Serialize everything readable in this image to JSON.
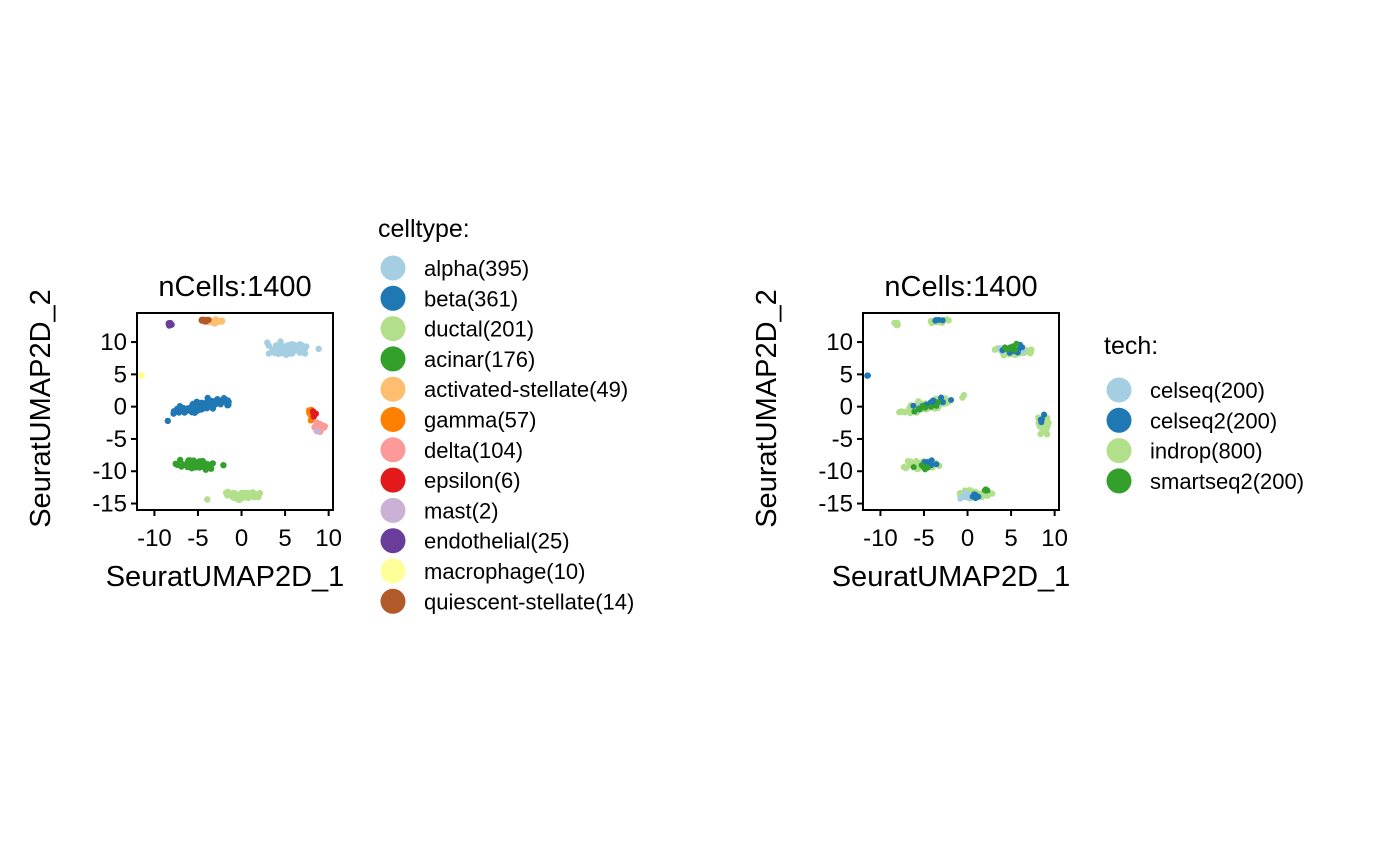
{
  "chart_data": [
    {
      "type": "scatter",
      "title": "nCells:1400",
      "xlabel": "SeuratUMAP2D_1",
      "ylabel": "SeuratUMAP2D_2",
      "xlim": [
        -12,
        10.5
      ],
      "ylim": [
        -16,
        14.5
      ],
      "xticks": [
        -10,
        -5,
        0,
        5,
        10
      ],
      "yticks": [
        -15,
        -10,
        -5,
        0,
        5,
        10
      ],
      "xtick_labels": [
        "-10",
        "-5",
        "0",
        "5",
        "10"
      ],
      "ytick_labels": [
        "-15",
        "-10",
        "-5",
        "0",
        "5",
        "10"
      ],
      "grid": false,
      "legend_position": "right",
      "legend_title": "celltype:",
      "series": [
        {
          "name": "alpha(395)",
          "color": "#A6CEE3",
          "clusters": [
            {
              "x": 5,
              "y": 8.8,
              "sx": 1.8,
              "sy": 0.7,
              "n": 120,
              "r": 3.2
            }
          ]
        },
        {
          "name": "beta(361)",
          "color": "#1F78B4",
          "clusters": [
            {
              "x": -4.3,
              "y": 0.2,
              "sx": 2.8,
              "sy": 0.6,
              "n": 110,
              "r": 3.2,
              "slope": 0.3
            }
          ]
        },
        {
          "name": "ductal(201)",
          "color": "#B2DF8A",
          "clusters": [
            {
              "x": 0.3,
              "y": -13.7,
              "sx": 1.8,
              "sy": 0.5,
              "n": 70,
              "r": 3.2
            }
          ]
        },
        {
          "name": "acinar(176)",
          "color": "#33A02C",
          "clusters": [
            {
              "x": -5.2,
              "y": -9,
              "sx": 1.8,
              "sy": 0.6,
              "n": 60,
              "r": 3.2
            }
          ]
        },
        {
          "name": "activated-stellate(49)",
          "color": "#FDBF6F",
          "clusters": [
            {
              "x": -3,
              "y": 13.2,
              "sx": 1.0,
              "sy": 0.3,
              "n": 22,
              "r": 3.2
            }
          ]
        },
        {
          "name": "gamma(57)",
          "color": "#FF7F00",
          "clusters": [
            {
              "x": 8,
              "y": -1,
              "sx": 0.4,
              "sy": 0.5,
              "n": 20,
              "r": 3.2
            }
          ]
        },
        {
          "name": "delta(104)",
          "color": "#FB9A99",
          "clusters": [
            {
              "x": 9,
              "y": -3.2,
              "sx": 0.5,
              "sy": 0.6,
              "n": 40,
              "r": 3.2
            }
          ]
        },
        {
          "name": "epsilon(6)",
          "color": "#E31A1C",
          "clusters": [
            {
              "x": 8.3,
              "y": -1,
              "sx": 0.2,
              "sy": 0.3,
              "n": 6,
              "r": 3.2
            }
          ]
        },
        {
          "name": "mast(2)",
          "color": "#CAB2D6",
          "clusters": [
            {
              "x": 8.7,
              "y": -3.8,
              "sx": 0.1,
              "sy": 0.1,
              "n": 2,
              "r": 3.2
            }
          ]
        },
        {
          "name": "endothelial(25)",
          "color": "#6A3D9A",
          "clusters": [
            {
              "x": -8.2,
              "y": 12.8,
              "sx": 0.2,
              "sy": 0.2,
              "n": 15,
              "r": 3.2
            }
          ]
        },
        {
          "name": "macrophage(10)",
          "color": "#FFFF99",
          "clusters": [
            {
              "x": -11.5,
              "y": 4.8,
              "sx": 0.1,
              "sy": 0.1,
              "n": 6,
              "r": 3.2
            }
          ]
        },
        {
          "name": "quiescent-stellate(14)",
          "color": "#B15928",
          "clusters": [
            {
              "x": -4.2,
              "y": 13.3,
              "sx": 0.4,
              "sy": 0.2,
              "n": 10,
              "r": 3.2
            }
          ]
        }
      ]
    },
    {
      "type": "scatter",
      "title": "nCells:1400",
      "xlabel": "SeuratUMAP2D_1",
      "ylabel": "SeuratUMAP2D_2",
      "xlim": [
        -12,
        10.5
      ],
      "ylim": [
        -16,
        14.5
      ],
      "xticks": [
        -10,
        -5,
        0,
        5,
        10
      ],
      "yticks": [
        -15,
        -10,
        -5,
        0,
        5,
        10
      ],
      "xtick_labels": [
        "-10",
        "-5",
        "0",
        "5",
        "10"
      ],
      "ytick_labels": [
        "-15",
        "-10",
        "-5",
        "0",
        "5",
        "10"
      ],
      "grid": false,
      "legend_position": "right",
      "legend_title": "tech:",
      "series": [
        {
          "name": "indrop(800)",
          "color": "#B2DF8A",
          "clusters": [
            {
              "x": 5.3,
              "y": 8.8,
              "sx": 1.6,
              "sy": 0.6,
              "n": 90,
              "r": 3.2
            },
            {
              "x": -4.3,
              "y": 0.3,
              "sx": 2.6,
              "sy": 0.6,
              "n": 80,
              "r": 3.2,
              "slope": 0.3
            },
            {
              "x": 0.5,
              "y": -13.6,
              "sx": 1.6,
              "sy": 0.5,
              "n": 55,
              "r": 3.2
            },
            {
              "x": -5.3,
              "y": -9,
              "sx": 1.5,
              "sy": 0.6,
              "n": 45,
              "r": 3.2
            },
            {
              "x": 8.7,
              "y": -2.5,
              "sx": 0.5,
              "sy": 1.2,
              "n": 40,
              "r": 3.2
            },
            {
              "x": -3.3,
              "y": 13.2,
              "sx": 0.9,
              "sy": 0.3,
              "n": 16,
              "r": 3.2
            },
            {
              "x": -8.2,
              "y": 12.8,
              "sx": 0.2,
              "sy": 0.2,
              "n": 8,
              "r": 3.2
            }
          ]
        },
        {
          "name": "celseq(200)",
          "color": "#A6CEE3",
          "clusters": [
            {
              "x": 5.3,
              "y": 8.8,
              "sx": 1.3,
              "sy": 0.5,
              "n": 25,
              "r": 3.0
            },
            {
              "x": 0,
              "y": -13.8,
              "sx": 1.0,
              "sy": 0.4,
              "n": 12,
              "r": 3.0
            },
            {
              "x": -4.5,
              "y": 0.3,
              "sx": 2.0,
              "sy": 0.5,
              "n": 12,
              "r": 3.0,
              "slope": 0.3
            }
          ]
        },
        {
          "name": "celseq2(200)",
          "color": "#1F78B4",
          "clusters": [
            {
              "x": 5.5,
              "y": 8.8,
              "sx": 1.2,
              "sy": 0.5,
              "n": 14,
              "r": 3.0
            },
            {
              "x": -4.2,
              "y": 0.5,
              "sx": 2.0,
              "sy": 0.5,
              "n": 12,
              "r": 3.0,
              "slope": 0.3
            },
            {
              "x": -4.5,
              "y": -8.7,
              "sx": 1.0,
              "sy": 0.5,
              "n": 8,
              "r": 3.0
            },
            {
              "x": -3.3,
              "y": 13.3,
              "sx": 0.6,
              "sy": 0.2,
              "n": 5,
              "r": 3.0
            },
            {
              "x": 0.5,
              "y": -13.8,
              "sx": 1.0,
              "sy": 0.3,
              "n": 6,
              "r": 3.0
            },
            {
              "x": -11.5,
              "y": 4.8,
              "sx": 0.1,
              "sy": 0.1,
              "n": 4,
              "r": 3.0
            },
            {
              "x": 8.5,
              "y": -2,
              "sx": 0.3,
              "sy": 0.8,
              "n": 4,
              "r": 3.0
            }
          ]
        },
        {
          "name": "smartseq2(200)",
          "color": "#33A02C",
          "clusters": [
            {
              "x": -4.8,
              "y": 0,
              "sx": 1.8,
              "sy": 0.5,
              "n": 8,
              "r": 3.0,
              "slope": 0.3
            },
            {
              "x": 5.2,
              "y": 9,
              "sx": 1.2,
              "sy": 0.5,
              "n": 8,
              "r": 3.0
            },
            {
              "x": -5.5,
              "y": -9.2,
              "sx": 1.0,
              "sy": 0.5,
              "n": 5,
              "r": 3.0
            },
            {
              "x": 2,
              "y": -13,
              "sx": 0.6,
              "sy": 0.3,
              "n": 5,
              "r": 3.0
            }
          ]
        }
      ]
    }
  ]
}
